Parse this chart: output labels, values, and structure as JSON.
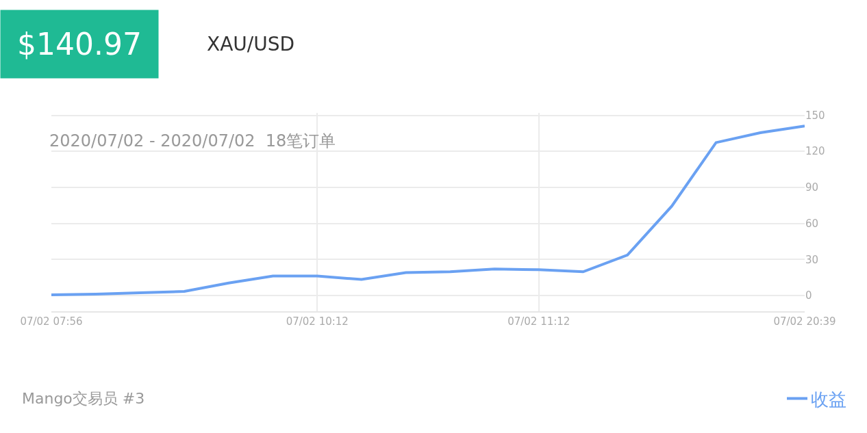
{
  "chart_data": {
    "type": "line",
    "title": "$140.97",
    "subtitle": "XAU/USD",
    "annotations": [
      "2020/07/02 - 2020/07/02  18笔订单",
      "Mango交易员 #3"
    ],
    "categories": [
      "07/02 07:56",
      null,
      null,
      null,
      null,
      null,
      "07/02 10:12",
      null,
      null,
      null,
      null,
      "07/02 11:12",
      null,
      null,
      null,
      null,
      null,
      "07/02 20:39"
    ],
    "series": [
      {
        "name": "收益",
        "color": "#6aa1f2",
        "values": [
          0.6,
          1.2,
          2.3,
          3.5,
          10.5,
          16.3,
          16.3,
          13.4,
          19.2,
          19.8,
          22.1,
          21.5,
          19.8,
          33.7,
          74.4,
          127.3,
          135.5,
          141
        ]
      }
    ],
    "ylim": [
      -13,
      152
    ],
    "yticks": [
      0,
      30,
      60,
      90,
      120,
      150
    ],
    "grid": true,
    "legend": "bottom right",
    "marker": "none",
    "line_style": "solid"
  }
}
